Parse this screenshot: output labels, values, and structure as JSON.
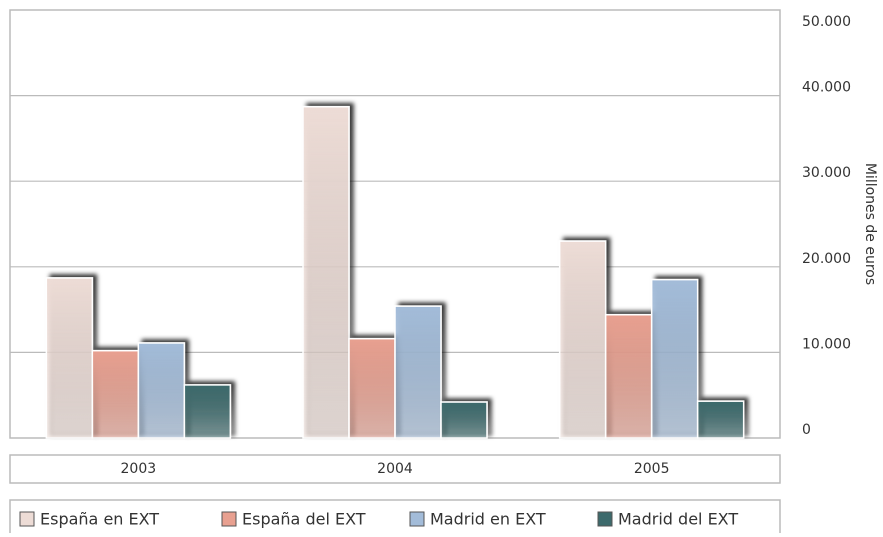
{
  "chart_data": {
    "type": "bar",
    "categories": [
      "2003",
      "2004",
      "2005"
    ],
    "series": [
      {
        "name": "España en EXT",
        "color": "#eddcd6",
        "values": [
          18700,
          38700,
          23000
        ]
      },
      {
        "name": "España del EXT",
        "color": "#e8a090",
        "values": [
          10200,
          11600,
          14400
        ]
      },
      {
        "name": "Madrid en EXT",
        "color": "#a3bcd9",
        "values": [
          11100,
          15400,
          18500
        ]
      },
      {
        "name": "Madrid del EXT",
        "color": "#3d6a6c",
        "values": [
          6200,
          4200,
          4300
        ]
      }
    ],
    "y_label": "Millones de euros",
    "ylim": [
      0,
      50000
    ],
    "yticks": [
      0,
      {
        "value": 10000,
        "label": "10.000"
      },
      {
        "value": 20000,
        "label": "20.000"
      },
      {
        "value": 30000,
        "label": "30.000"
      },
      {
        "value": 40000,
        "label": "40.000"
      },
      {
        "value": 50000,
        "label": "50.000"
      }
    ],
    "grid": true
  }
}
